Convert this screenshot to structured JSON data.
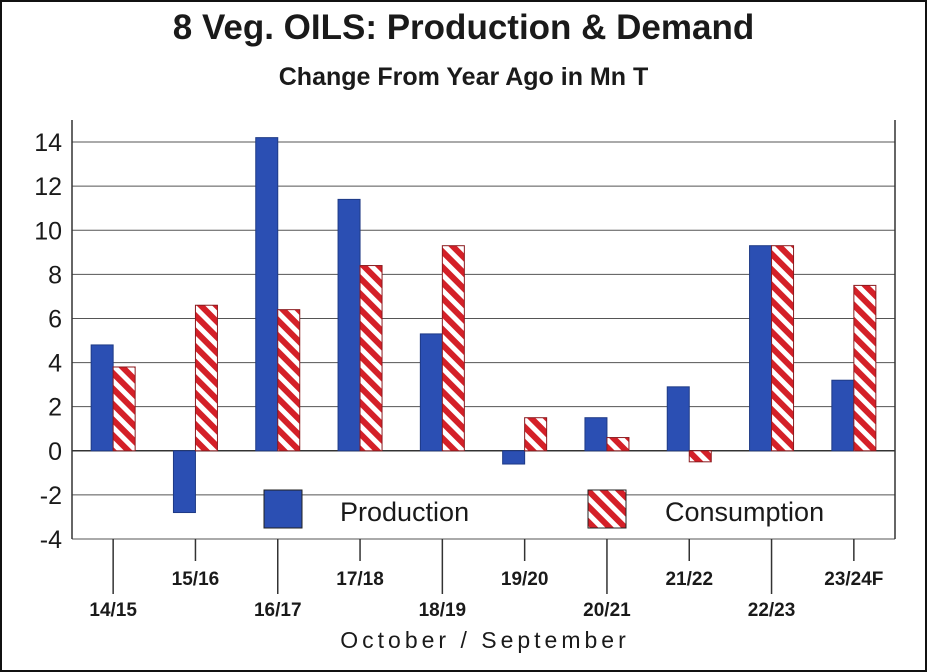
{
  "chart_data": {
    "type": "bar",
    "title": "8 Veg. OILS: Production & Demand",
    "subtitle": "Change From Year Ago in Mn T",
    "xlabel": "October / September",
    "ylabel": "",
    "categories": [
      "14/15",
      "15/16",
      "16/17",
      "17/18",
      "18/19",
      "19/20",
      "20/21",
      "21/22",
      "22/23",
      "23/24F"
    ],
    "series": [
      {
        "name": "Production",
        "color": "#2b4fb3",
        "pattern": "solid",
        "values": [
          4.8,
          -2.8,
          14.2,
          11.4,
          5.3,
          -0.6,
          1.5,
          2.9,
          9.3,
          3.2
        ]
      },
      {
        "name": "Consumption",
        "color": "#d42028",
        "pattern": "diagonal-stripes",
        "values": [
          3.8,
          6.6,
          6.4,
          8.4,
          9.3,
          1.5,
          0.6,
          -0.5,
          9.3,
          7.5
        ]
      }
    ],
    "ylim": [
      -4,
      15
    ],
    "yticks": [
      -4,
      -2,
      0,
      2,
      4,
      6,
      8,
      10,
      12,
      14
    ],
    "grid": true,
    "legend_position": "bottom-inside"
  }
}
